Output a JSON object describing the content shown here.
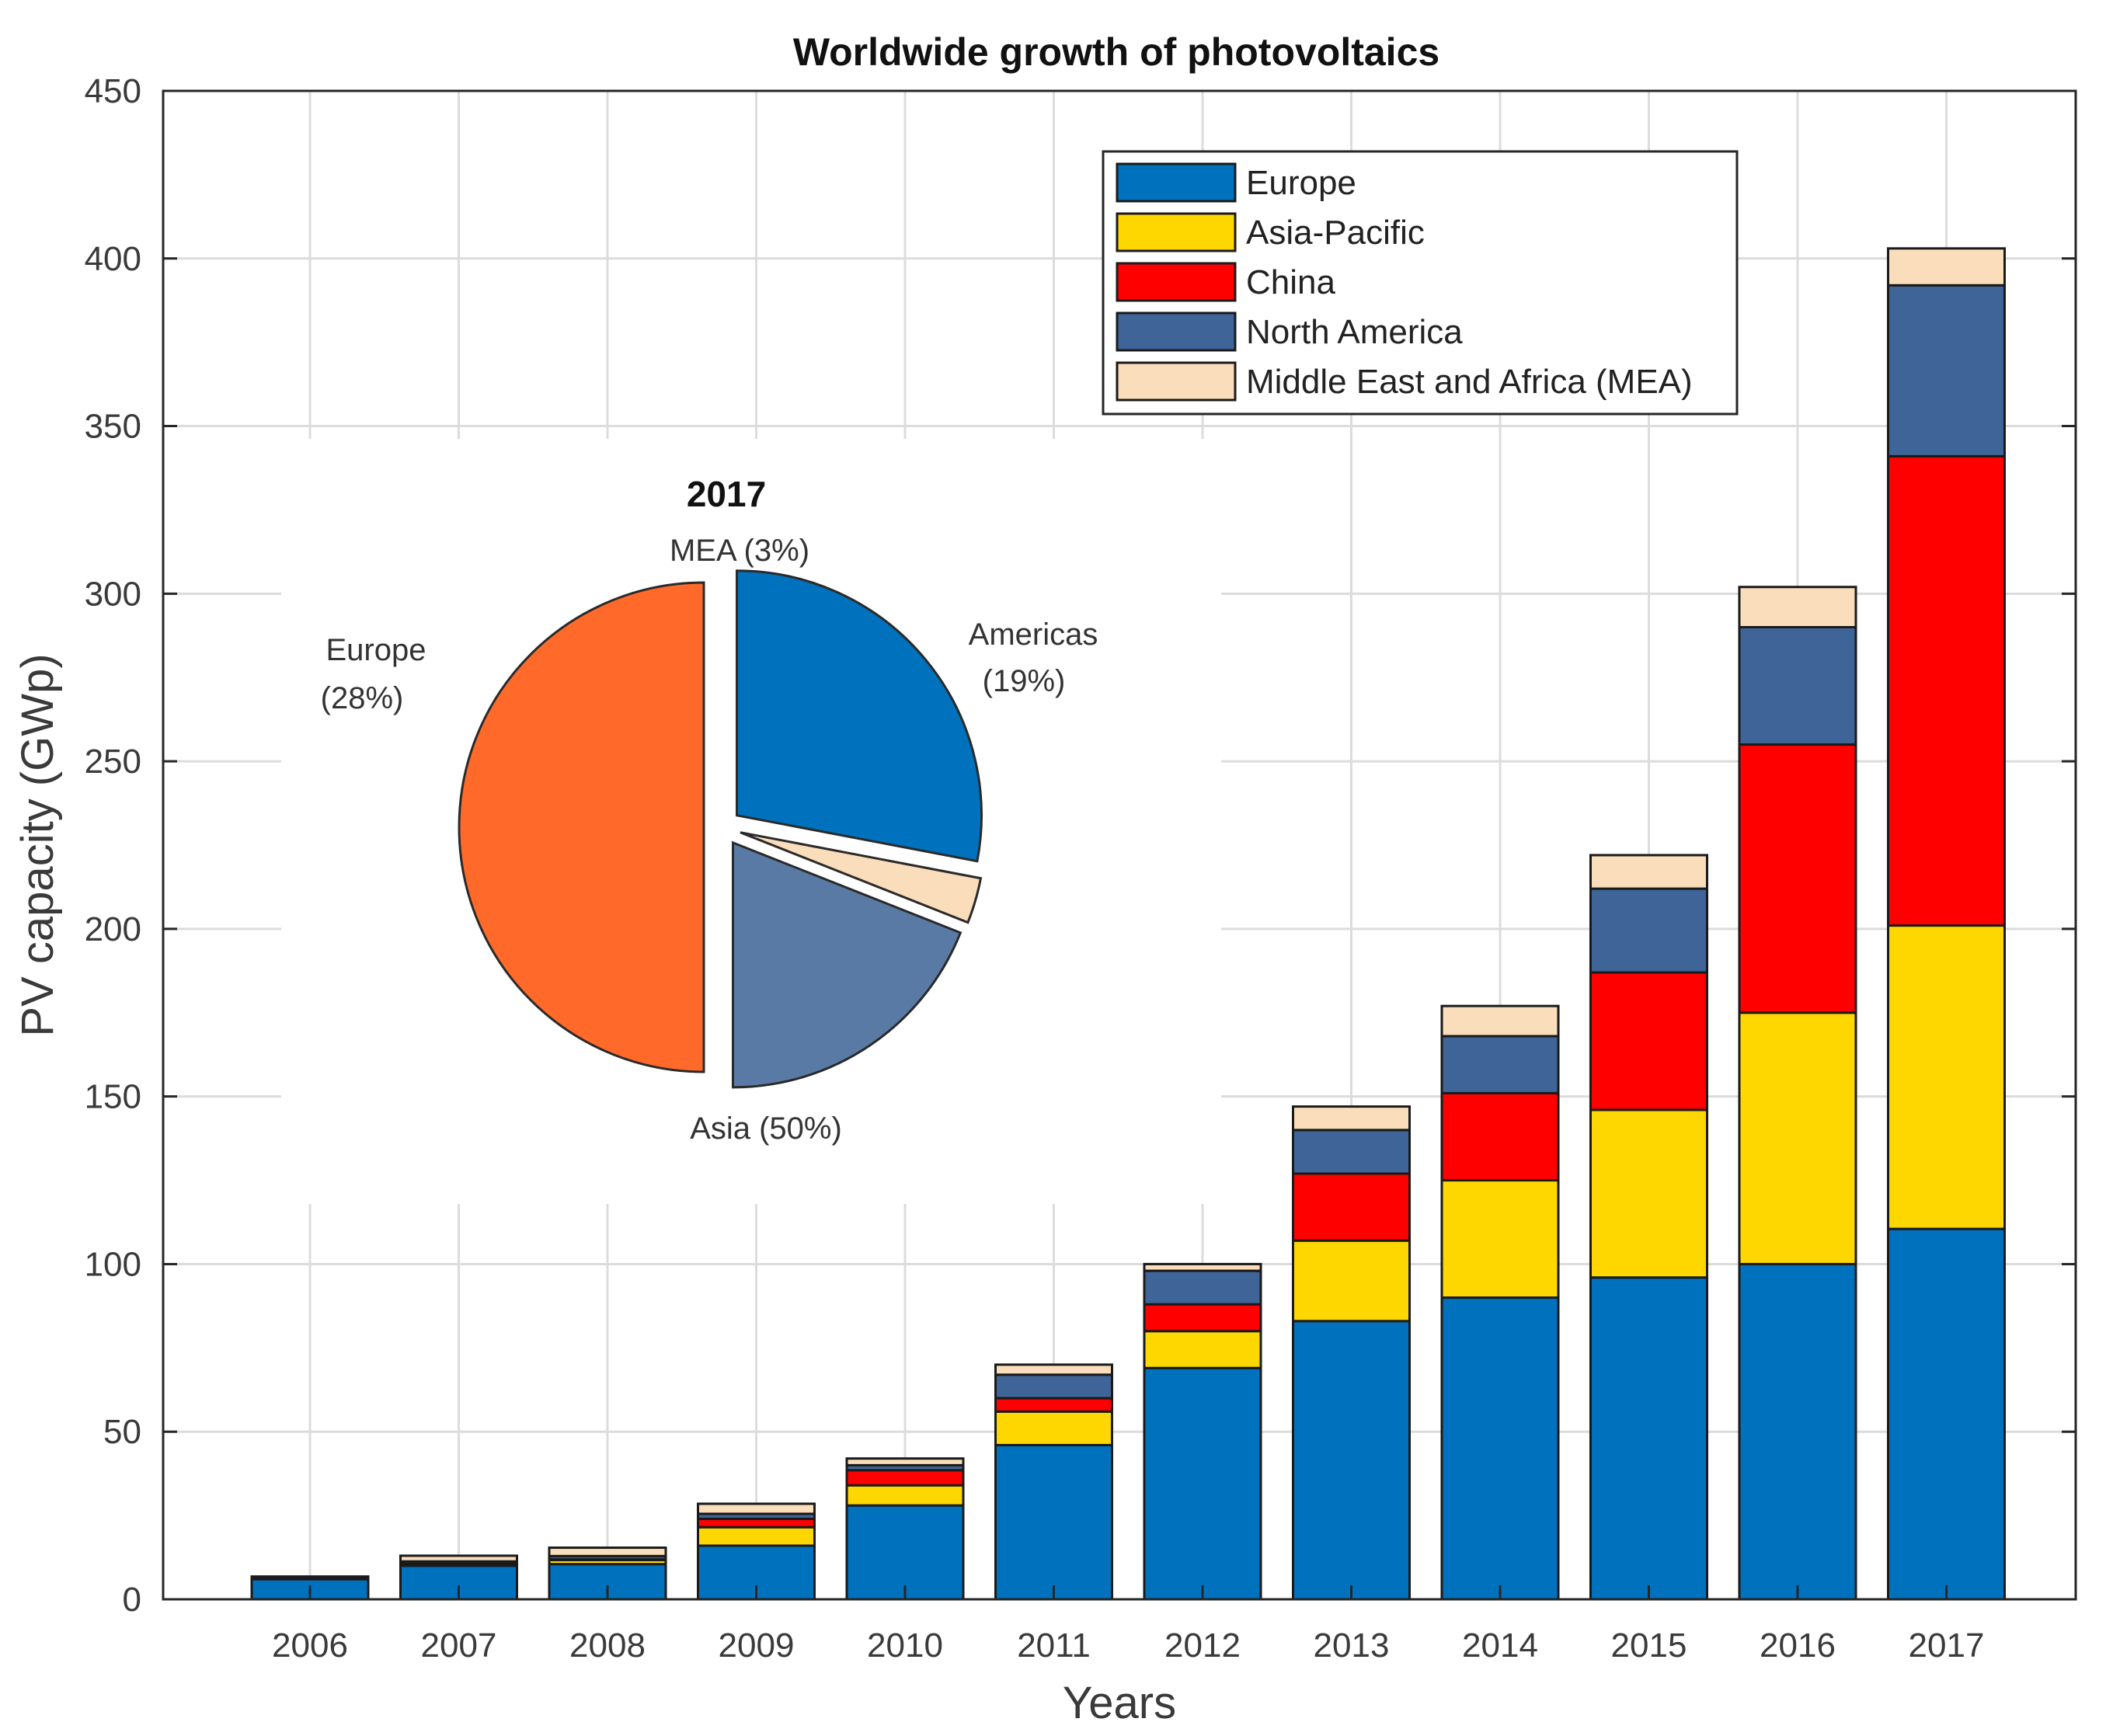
{
  "chart_data": [
    {
      "type": "bar",
      "stacked": true,
      "title": "Worldwide growth of photovoltaics",
      "xlabel": "Years",
      "ylabel": "PV capacity (GWp)",
      "ylim": [
        0,
        450
      ],
      "yticks": [
        0,
        50,
        100,
        150,
        200,
        250,
        300,
        350,
        400,
        450
      ],
      "grid": true,
      "legend_position": "top-right",
      "categories": [
        "2006",
        "2007",
        "2008",
        "2009",
        "2010",
        "2011",
        "2012",
        "2013",
        "2014",
        "2015",
        "2016",
        "2017"
      ],
      "series": [
        {
          "name": "Europe",
          "color": "#0072BD",
          "values": [
            6,
            10,
            10.5,
            16,
            28,
            46,
            69,
            83,
            90,
            96,
            100,
            110.5
          ]
        },
        {
          "name": "Asia-Pacific",
          "color": "#FFD700",
          "values": [
            0.3,
            0.6,
            1.2,
            5.5,
            6,
            10,
            11,
            24,
            35,
            50,
            75,
            90.5
          ]
        },
        {
          "name": "China",
          "color": "#FF0000",
          "values": [
            0.1,
            0.2,
            0.2,
            2.5,
            4.5,
            4,
            8,
            20,
            26,
            41,
            80,
            140
          ]
        },
        {
          "name": "North America",
          "color": "#3F6598",
          "values": [
            0.3,
            0.5,
            1,
            1.5,
            1.5,
            7,
            10,
            13,
            17,
            25,
            35,
            51
          ]
        },
        {
          "name": "Middle East and Africa (MEA)",
          "color": "#FADDBB",
          "values": [
            0.1,
            1.7,
            2.5,
            3,
            2,
            3,
            2,
            7,
            9,
            10,
            12,
            11
          ]
        }
      ]
    },
    {
      "type": "pie",
      "title": "2017",
      "slices": [
        {
          "name": "Europe",
          "label_line1": "Europe",
          "label_line2": "(28%)",
          "value": 28,
          "color": "#0072BD"
        },
        {
          "name": "MEA",
          "label_line1": "MEA (3%)",
          "label_line2": "",
          "value": 3,
          "color": "#FADDBB"
        },
        {
          "name": "Americas",
          "label_line1": "Americas",
          "label_line2": "(19%)",
          "value": 19,
          "color": "#5A7AA6"
        },
        {
          "name": "Asia",
          "label_line1": "Asia (50%)",
          "label_line2": "",
          "value": 50,
          "color": "#FF6A2A"
        }
      ]
    }
  ]
}
